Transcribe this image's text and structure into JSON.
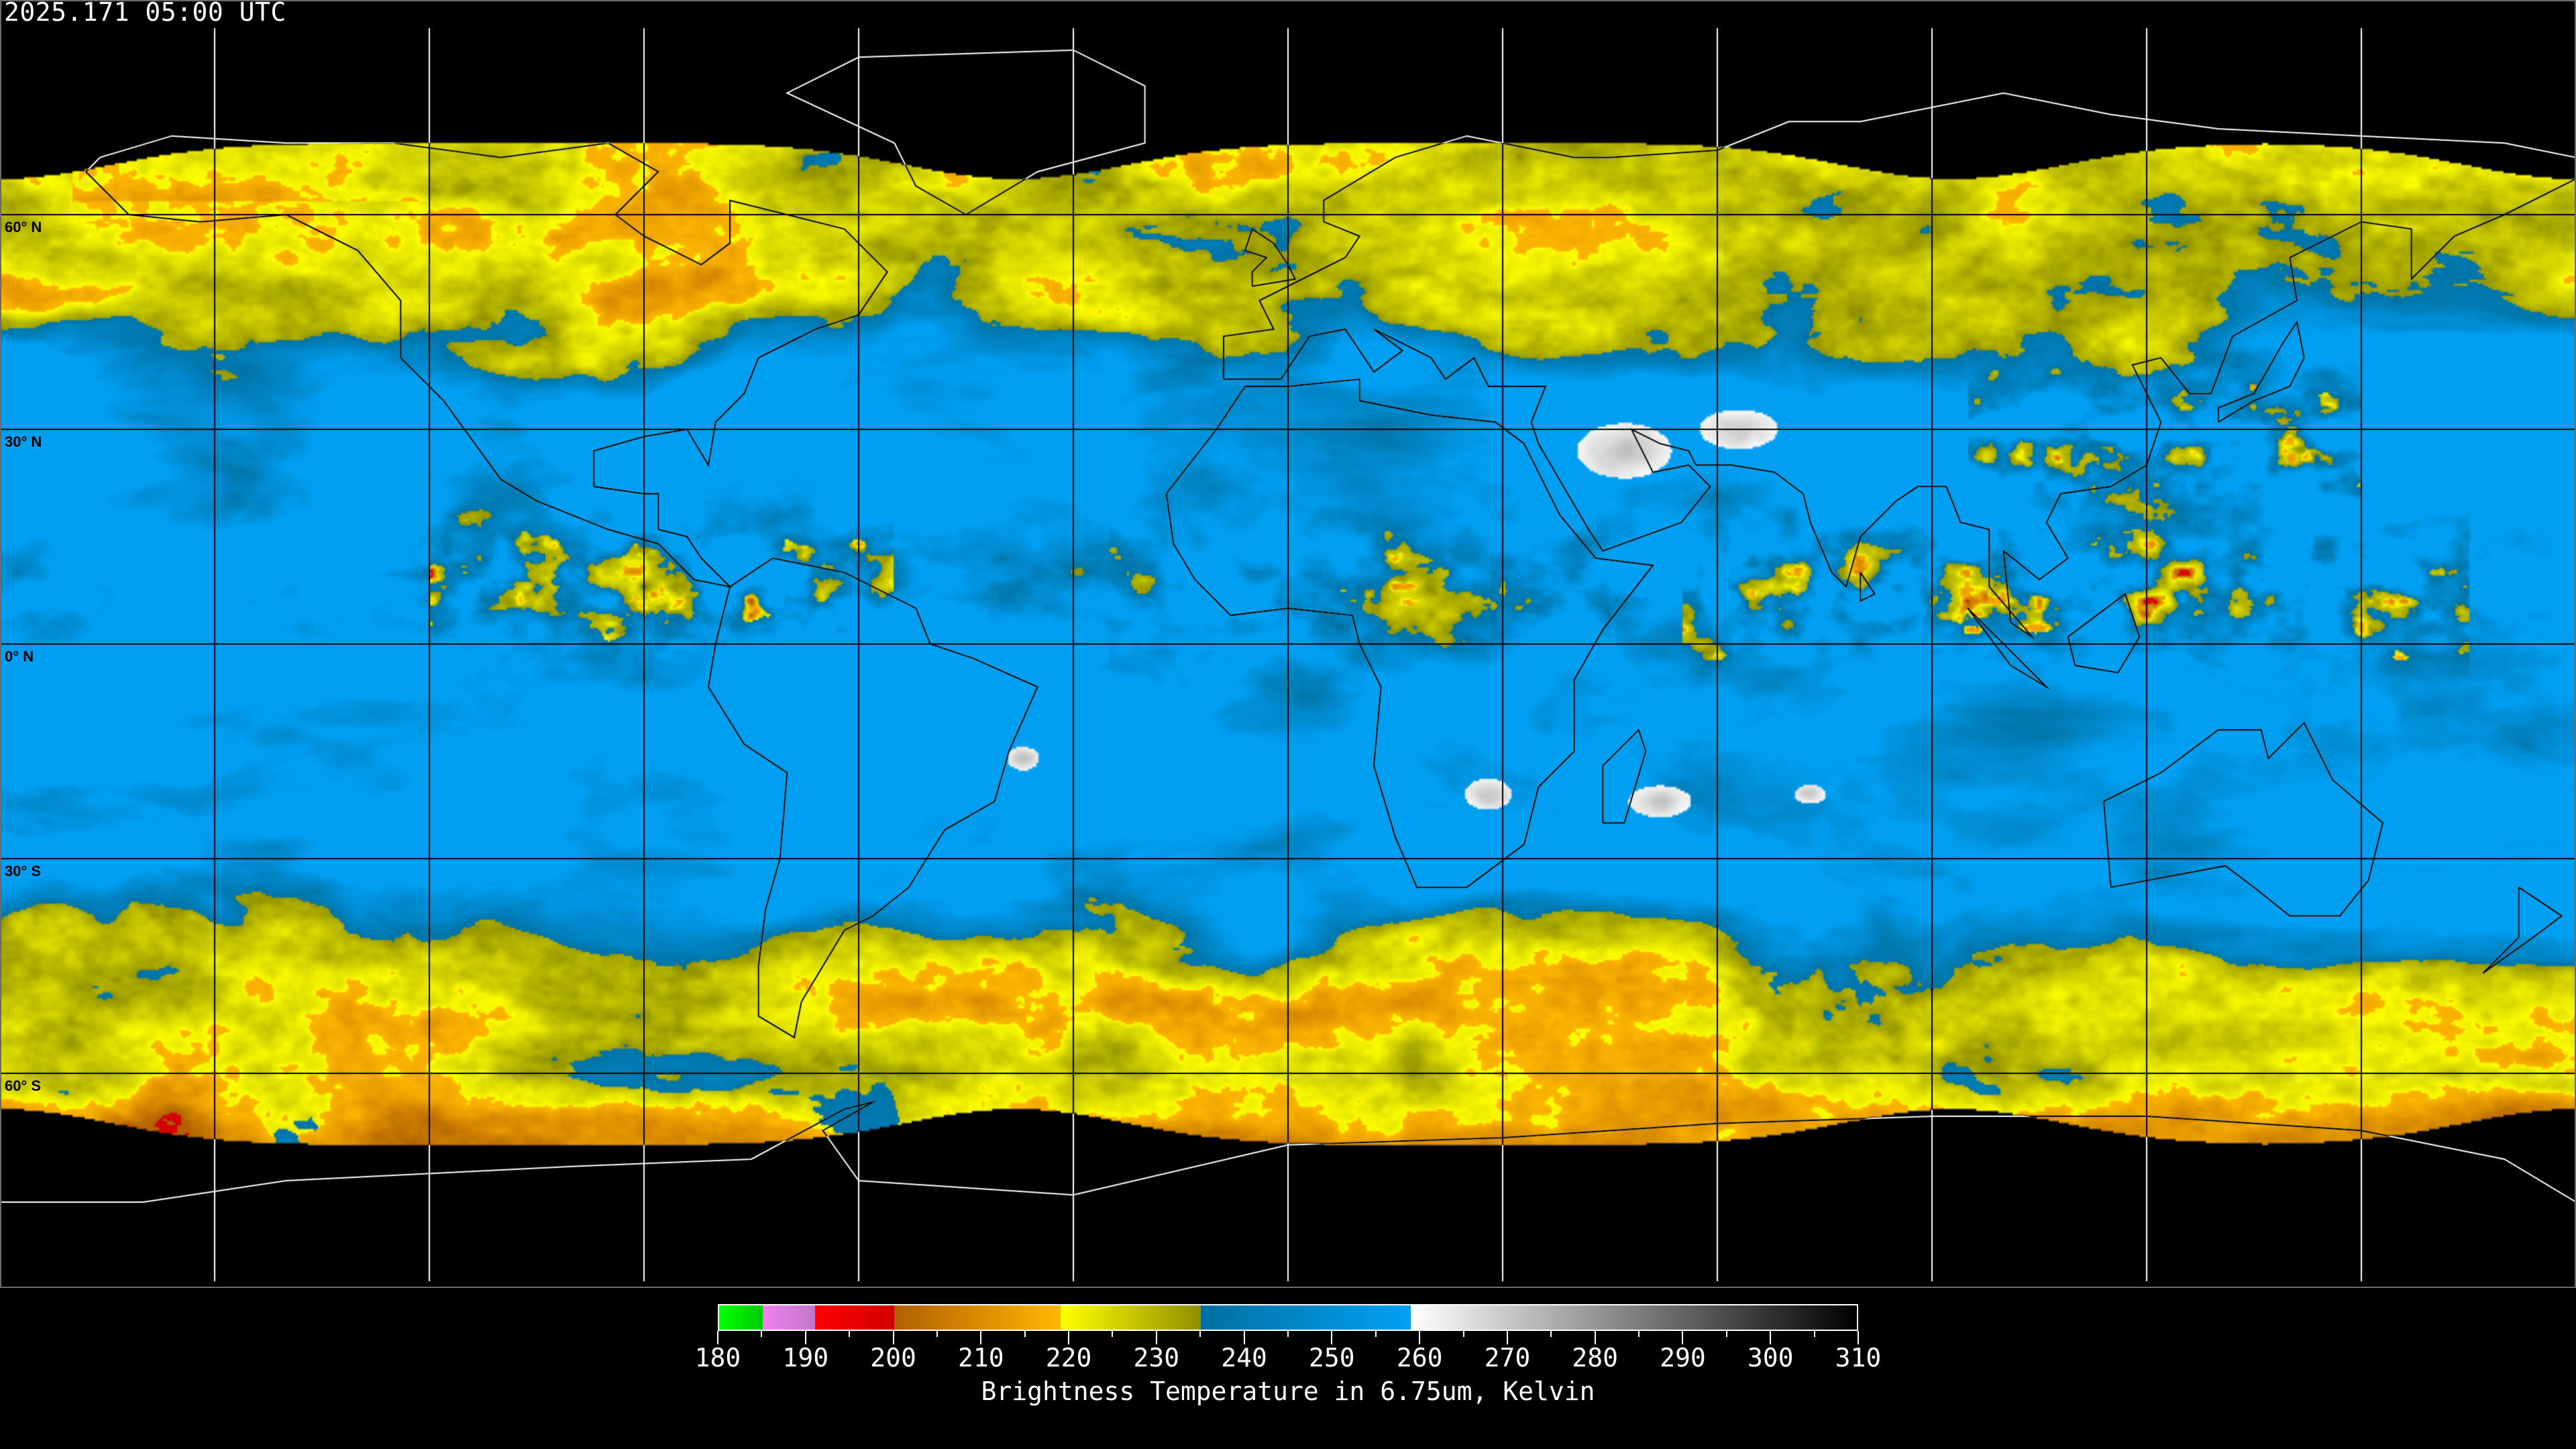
{
  "title": "2025.171 05:00 UTC",
  "map": {
    "projection": "equirectangular",
    "lon_range": [
      -180,
      180
    ],
    "lat_range": [
      -90,
      90
    ],
    "lat_labels": [
      {
        "lat": 60,
        "label": "60° N"
      },
      {
        "lat": 30,
        "label": "30° N"
      },
      {
        "lat": 0,
        "label": "0° N"
      },
      {
        "lat": -30,
        "label": "30° S"
      },
      {
        "lat": -60,
        "label": "60° S"
      }
    ],
    "graticule_lons": [
      -150,
      -120,
      -90,
      -60,
      -30,
      0,
      30,
      60,
      90,
      120,
      150
    ],
    "colors": {
      "no_data": "#000000",
      "coast_on_data": "#000000",
      "coast_on_nodata": "#ffffff"
    }
  },
  "colorbar": {
    "title": "Brightness Temperature in 6.75um, Kelvin",
    "min": 180,
    "max": 310,
    "tick_labels": [
      "180",
      "190",
      "200",
      "210",
      "220",
      "230",
      "240",
      "250",
      "260",
      "270",
      "280",
      "290",
      "300",
      "310"
    ],
    "segments": [
      {
        "from": 180,
        "to": 185,
        "colors": [
          "#00ff00",
          "#00cc00"
        ]
      },
      {
        "from": 185,
        "to": 191,
        "colors": [
          "#f080f0",
          "#c078c8"
        ]
      },
      {
        "from": 191,
        "to": 200,
        "colors": [
          "#ff0000",
          "#d00000"
        ]
      },
      {
        "from": 200,
        "to": 219,
        "colors": [
          "#b06000",
          "#ffb800"
        ]
      },
      {
        "from": 219,
        "to": 235,
        "colors": [
          "#ffff00",
          "#909000"
        ]
      },
      {
        "from": 235,
        "to": 259,
        "colors": [
          "#0070a0",
          "#00a0f4"
        ]
      },
      {
        "from": 259,
        "to": 310,
        "colors": [
          "#ffffff",
          "#000000"
        ]
      }
    ]
  }
}
